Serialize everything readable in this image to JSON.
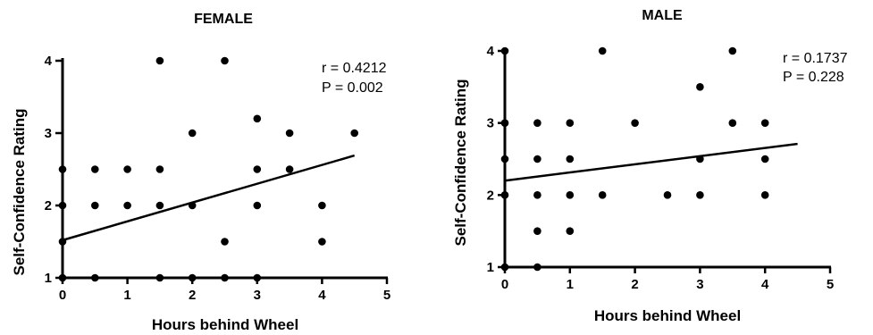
{
  "chart_data": [
    {
      "type": "scatter",
      "title": "FEMALE",
      "xlabel": "Hours behind Wheel",
      "ylabel": "Self-Confidence Rating",
      "xlim": [
        0,
        5
      ],
      "ylim": [
        1,
        4
      ],
      "xticks": [
        "0",
        "1",
        "2",
        "3",
        "4",
        "5"
      ],
      "yticks": [
        "1",
        "2",
        "3",
        "4"
      ],
      "grid": false,
      "annotations": [
        "r = 0.4212",
        "P = 0.002"
      ],
      "points": [
        [
          0,
          1
        ],
        [
          0,
          1.5
        ],
        [
          0,
          2
        ],
        [
          0,
          2.5
        ],
        [
          0.5,
          1
        ],
        [
          0.5,
          2
        ],
        [
          0.5,
          2.5
        ],
        [
          1,
          2
        ],
        [
          1,
          2.5
        ],
        [
          1.5,
          1
        ],
        [
          1.5,
          2
        ],
        [
          1.5,
          2.5
        ],
        [
          1.5,
          4
        ],
        [
          2,
          1
        ],
        [
          2,
          2
        ],
        [
          2,
          3
        ],
        [
          2.5,
          1
        ],
        [
          2.5,
          1.5
        ],
        [
          2.5,
          4
        ],
        [
          3,
          1
        ],
        [
          3,
          2
        ],
        [
          3,
          2.5
        ],
        [
          3,
          3.2
        ],
        [
          3.5,
          2.5
        ],
        [
          3.5,
          3
        ],
        [
          4,
          1.5
        ],
        [
          4,
          2
        ],
        [
          4.5,
          3
        ]
      ],
      "fit_line": {
        "x": [
          0,
          4.5
        ],
        "y": [
          1.52,
          2.69
        ]
      }
    },
    {
      "type": "scatter",
      "title": "MALE",
      "xlabel": "Hours behind Wheel",
      "ylabel": "Self-Confidence Rating",
      "xlim": [
        0,
        5
      ],
      "ylim": [
        1,
        4
      ],
      "xticks": [
        "0",
        "1",
        "2",
        "3",
        "4",
        "5"
      ],
      "yticks": [
        "1",
        "2",
        "3",
        "4"
      ],
      "grid": false,
      "annotations": [
        "r = 0.1737",
        "P = 0.228"
      ],
      "points": [
        [
          0,
          1
        ],
        [
          0,
          2
        ],
        [
          0,
          2.5
        ],
        [
          0,
          3
        ],
        [
          0,
          4
        ],
        [
          0.5,
          1
        ],
        [
          0.5,
          1.5
        ],
        [
          0.5,
          2
        ],
        [
          0.5,
          2.5
        ],
        [
          0.5,
          3
        ],
        [
          1,
          1.5
        ],
        [
          1,
          2
        ],
        [
          1,
          2.5
        ],
        [
          1,
          3
        ],
        [
          1.5,
          2
        ],
        [
          1.5,
          4
        ],
        [
          2,
          3
        ],
        [
          2.5,
          2
        ],
        [
          3,
          2
        ],
        [
          3,
          2.5
        ],
        [
          3,
          3.5
        ],
        [
          3.5,
          3
        ],
        [
          3.5,
          4
        ],
        [
          4,
          2
        ],
        [
          4,
          2.5
        ],
        [
          4,
          3
        ]
      ],
      "fit_line": {
        "x": [
          0,
          4.5
        ],
        "y": [
          2.2,
          2.71
        ]
      }
    }
  ]
}
